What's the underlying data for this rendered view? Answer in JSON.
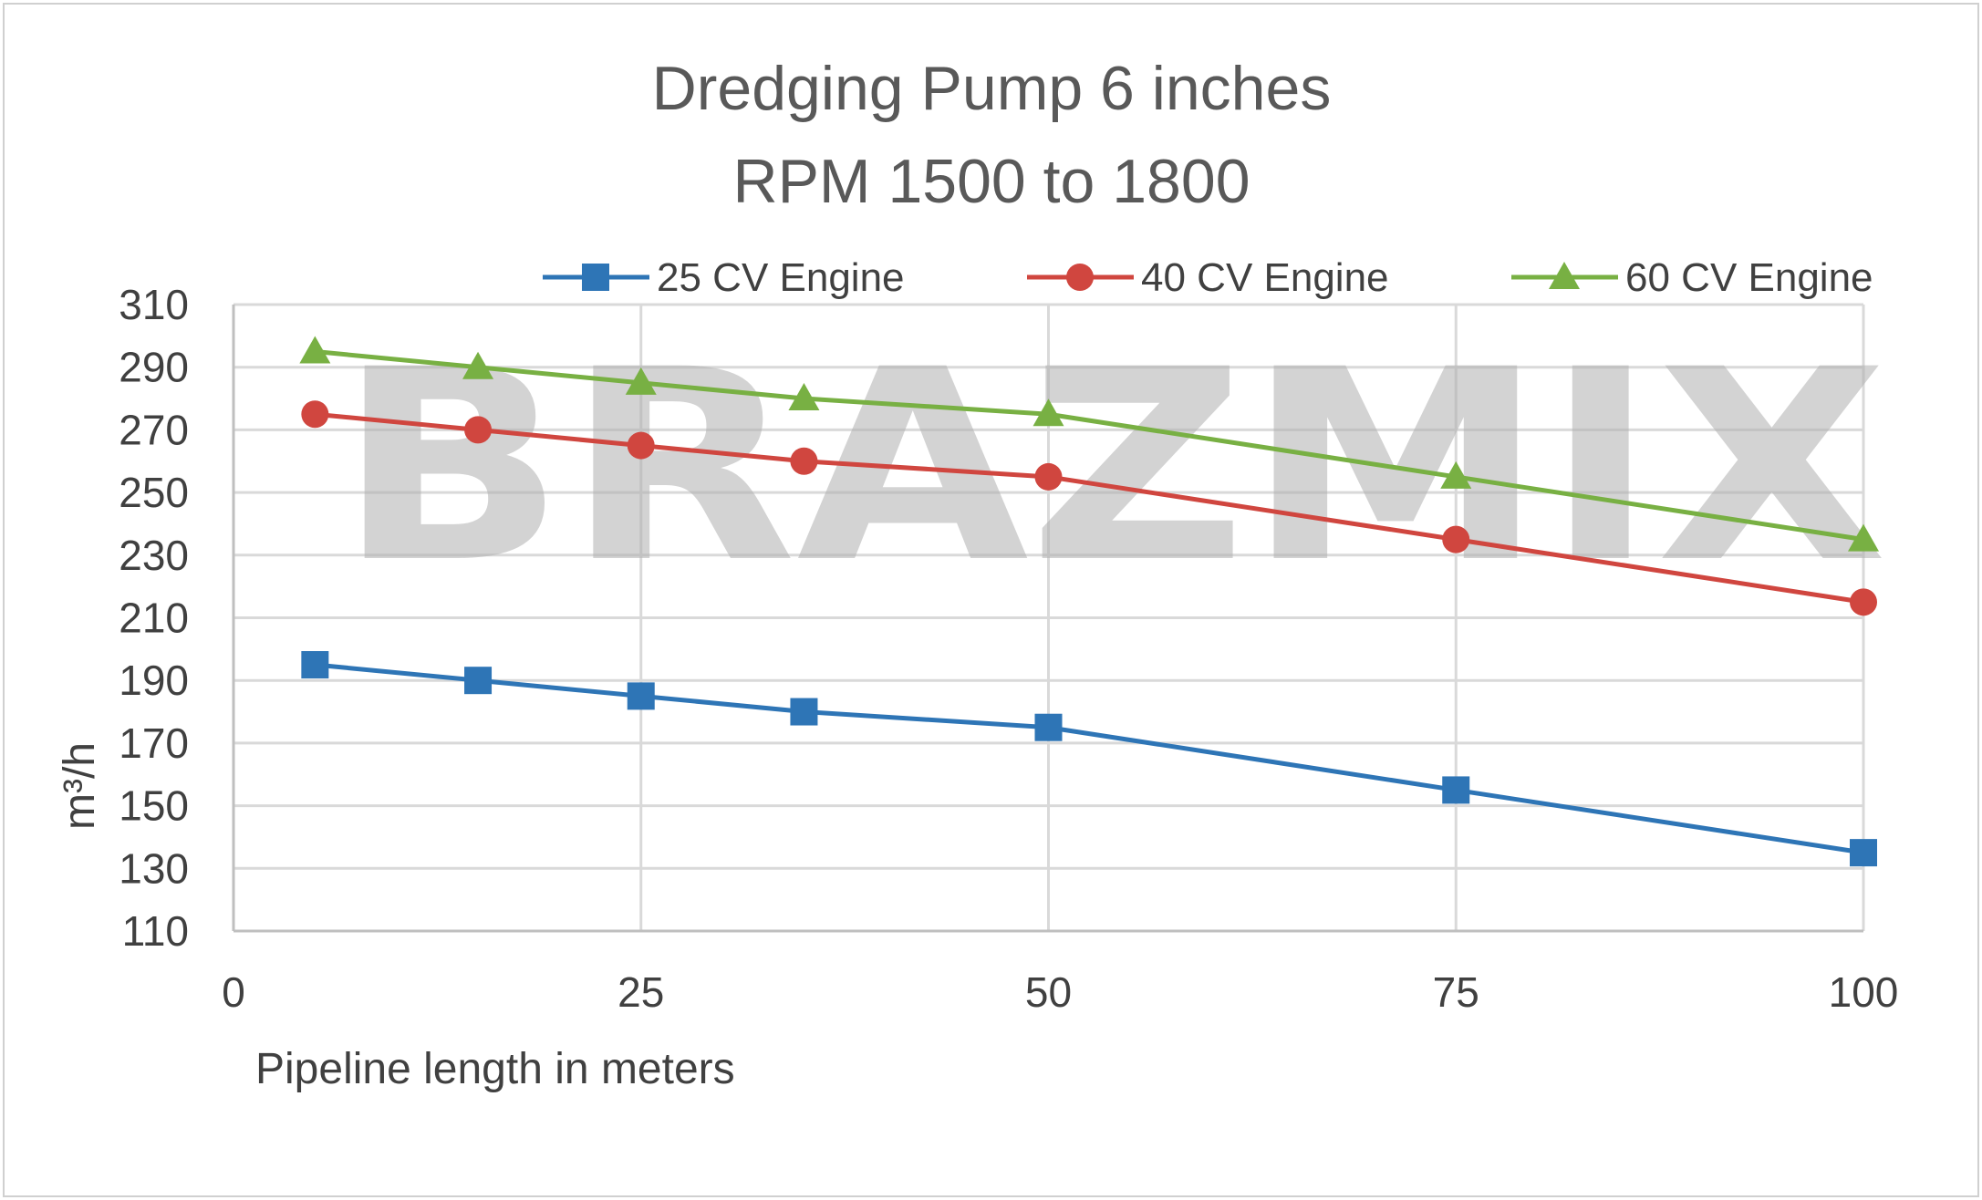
{
  "chart_data": {
    "type": "line",
    "title": [
      "Dredging Pump 6 inches",
      "RPM 1500 to 1800"
    ],
    "xlabel": "Pipeline length in meters",
    "ylabel": "m³/h",
    "xlim": [
      0,
      100
    ],
    "ylim": [
      110,
      310
    ],
    "xticks": [
      0,
      25,
      50,
      75,
      100
    ],
    "yticks": [
      110,
      130,
      150,
      170,
      190,
      210,
      230,
      250,
      270,
      290,
      310
    ],
    "grid": true,
    "legend_position": "top",
    "watermark": "BRAZMIX",
    "series": [
      {
        "name": "25 CV Engine",
        "color": "#2E75B6",
        "marker": "square",
        "x": [
          5,
          15,
          25,
          35,
          50,
          75,
          100
        ],
        "y": [
          195,
          190,
          185,
          180,
          175,
          155,
          135
        ]
      },
      {
        "name": "40 CV Engine",
        "color": "#D0463F",
        "marker": "circle",
        "x": [
          5,
          15,
          25,
          35,
          50,
          75,
          100
        ],
        "y": [
          275,
          270,
          265,
          260,
          255,
          235,
          215
        ]
      },
      {
        "name": "60 CV Engine",
        "color": "#78B043",
        "marker": "triangle",
        "x": [
          5,
          15,
          25,
          35,
          50,
          75,
          100
        ],
        "y": [
          295,
          290,
          285,
          280,
          275,
          255,
          235
        ]
      }
    ]
  }
}
